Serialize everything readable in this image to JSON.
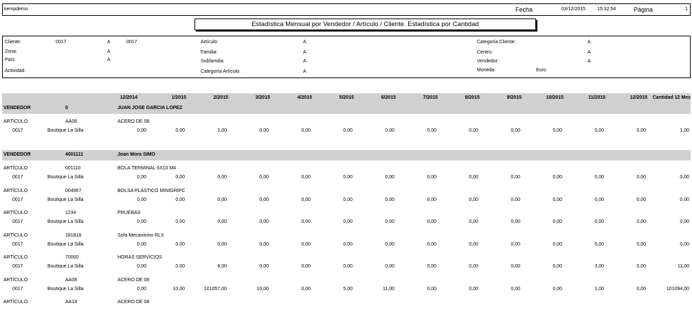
{
  "top": {
    "user": "kempdemo",
    "fecha_label": "Fecha",
    "date": "03/12/2015",
    "time": "15:32:54",
    "pagina_label": "Página",
    "page_number": "1"
  },
  "title": "Estadística Mensual por Vendedor / Artículo / Cliente. Estadística por Cantidad",
  "filters": {
    "cliente_label": "Cliente:",
    "cliente_from": "0017",
    "cliente_a": "A",
    "cliente_to": "0017",
    "zona_label": "Zona:",
    "zona_a": "A",
    "pais_label": "País:",
    "pais_a": "A",
    "actividad_label": "Actividad:",
    "articulo_label": "Artículo:",
    "articulo_a": "A",
    "familia_label": "Familia:",
    "familia_a": "A",
    "subfamilia_label": "Subfamilia:",
    "subfamilia_a": "A",
    "catart_label": "Categoría Artículo:",
    "catart_a": "A",
    "catcli_label": "Categoría Cliente:",
    "catcli_a": "A",
    "centro_label": "Centro:",
    "centro_a": "A",
    "vendedor_label": "Vendedor:",
    "vendedor_a": "A",
    "moneda_label": "Moneda:",
    "moneda_value": "Euro"
  },
  "columns": [
    "12/2014",
    "1/2015",
    "2/2015",
    "3/2015",
    "4/2015",
    "5/2015",
    "6/2015",
    "7/2015",
    "8/2015",
    "9/2015",
    "10/2015",
    "11/2015",
    "12/2015",
    "Cantidad 12 Mes"
  ],
  "labels": {
    "vendedor": "VENDEDOR",
    "articulo": "ARTÍCULO"
  },
  "vendors": [
    {
      "code": "0",
      "name": "JUAN JOSE GARCIA LOPEZ",
      "articles": [
        {
          "code": "AA08",
          "name": "ACERO DE 08",
          "client_code": "0017",
          "client_name": "Boutique La Silla",
          "values": [
            "0,00",
            "0,00",
            "1,00",
            "0,00",
            "0,00",
            "0,00",
            "0,00",
            "0,00",
            "0,00",
            "0,00",
            "0,00",
            "0,00",
            "0,00",
            "1,00"
          ]
        }
      ]
    },
    {
      "code": "4001111",
      "name": "Joan Mora SIMO",
      "articles": [
        {
          "code": "001110",
          "name": "BOLA TERMINAL 6X10 M4",
          "client_code": "0017",
          "client_name": "Boutique La Silla",
          "values": [
            "0,00",
            "0,00",
            "0,00",
            "0,00",
            "0,00",
            "0,00",
            "0,00",
            "0,00",
            "0,00",
            "0,00",
            "0,00",
            "0,00",
            "0,00",
            "0,00"
          ]
        },
        {
          "code": "004967",
          "name": "BOLSA PLÁSTICO MINIGRIPC",
          "client_code": "0017",
          "client_name": "Boutique La Silla",
          "values": [
            "0,00",
            "0,00",
            "0,00",
            "0,00",
            "0,00",
            "0,00",
            "0,00",
            "0,00",
            "0,00",
            "0,00",
            "0,00",
            "0,00",
            "0,00",
            "0,00"
          ]
        },
        {
          "code": "1234",
          "name": "PRUEBAS",
          "client_code": "0017",
          "client_name": "Boutique La Silla",
          "values": [
            "0,00",
            "0,00",
            "0,00",
            "0,00",
            "0,00",
            "0,00",
            "0,00",
            "0,00",
            "0,00",
            "0,00",
            "0,00",
            "0,00",
            "0,00",
            "0,00"
          ]
        },
        {
          "code": "181818",
          "name": "Sofa Mecanismo RLX",
          "client_code": "0017",
          "client_name": "Boutique La Silla",
          "values": [
            "0,00",
            "0,00",
            "0,00",
            "0,00",
            "0,00",
            "0,00",
            "0,00",
            "0,00",
            "0,00",
            "0,00",
            "0,00",
            "0,00",
            "0,00",
            "0,00"
          ]
        },
        {
          "code": "70000",
          "name": "HORAS SERVICIOS",
          "client_code": "0017",
          "client_name": "Boutique La Silla",
          "values": [
            "0,00",
            "0,00",
            "8,00",
            "0,00",
            "0,00",
            "0,00",
            "0,00",
            "0,00",
            "0,00",
            "0,00",
            "0,00",
            "3,00",
            "0,00",
            "11,00"
          ]
        },
        {
          "code": "AA08",
          "name": "ACERO DE 08",
          "client_code": "0017",
          "client_name": "Boutique La Silla",
          "values": [
            "0,00",
            "10,00",
            "101057,00",
            "10,00",
            "0,00",
            "5,00",
            "11,00",
            "0,00",
            "0,00",
            "0,00",
            "0,00",
            "1,00",
            "0,00",
            "101094,00"
          ]
        },
        {
          "code": "AA18",
          "name": "ACERO DE 08",
          "client_code": "",
          "client_name": "",
          "values": []
        }
      ]
    }
  ]
}
